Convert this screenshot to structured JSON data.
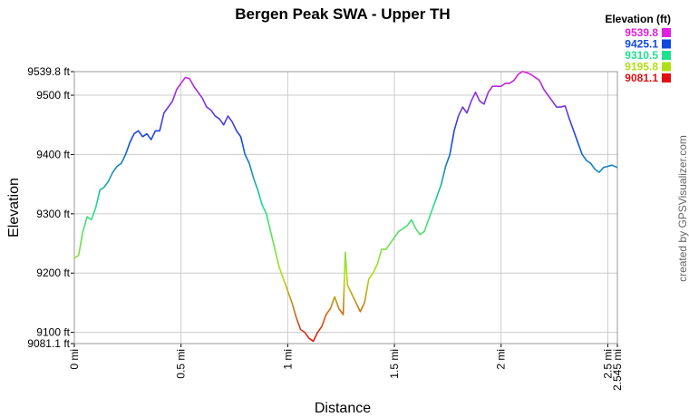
{
  "chart_data": {
    "type": "line",
    "title": "Bergen Peak SWA - Upper TH",
    "x_label": "Distance",
    "y_label": "Elevation",
    "credit": "created by GPSVisualizer.com",
    "legend": {
      "title": "Elevation (ft)",
      "position": "top-right",
      "entries": [
        {
          "value": 9539.8,
          "color": "#e020e0"
        },
        {
          "value": 9425.1,
          "color": "#1048e0"
        },
        {
          "value": 9310.5,
          "color": "#20e090"
        },
        {
          "value": 9195.8,
          "color": "#b0e010"
        },
        {
          "value": 9081.1,
          "color": "#e01010"
        }
      ]
    },
    "grid": true,
    "xlim": [
      0,
      2.545
    ],
    "ylim": [
      9081.1,
      9539.8
    ],
    "xticks": [
      {
        "value": 0,
        "label": "0 mi"
      },
      {
        "value": 0.5,
        "label": "0.5 mi"
      },
      {
        "value": 1,
        "label": "1 mi"
      },
      {
        "value": 1.5,
        "label": "1.5 mi"
      },
      {
        "value": 2,
        "label": "2 mi"
      },
      {
        "value": 2.5,
        "label": "2.5 mi"
      },
      {
        "value": 2.545,
        "label": "2.545 mi"
      }
    ],
    "yticks": [
      {
        "value": 9081.1,
        "label": "9081.1 ft"
      },
      {
        "value": 9100,
        "label": "9100 ft"
      },
      {
        "value": 9200,
        "label": "9200 ft"
      },
      {
        "value": 9300,
        "label": "9300 ft"
      },
      {
        "value": 9400,
        "label": "9400 ft"
      },
      {
        "value": 9500,
        "label": "9500 ft"
      },
      {
        "value": 9539.8,
        "label": "9539.8 ft"
      }
    ],
    "x": [
      0,
      0.02,
      0.04,
      0.06,
      0.08,
      0.1,
      0.12,
      0.14,
      0.16,
      0.18,
      0.2,
      0.22,
      0.24,
      0.26,
      0.28,
      0.3,
      0.32,
      0.34,
      0.36,
      0.38,
      0.4,
      0.42,
      0.44,
      0.46,
      0.48,
      0.5,
      0.52,
      0.54,
      0.56,
      0.58,
      0.6,
      0.62,
      0.64,
      0.66,
      0.68,
      0.7,
      0.72,
      0.74,
      0.76,
      0.78,
      0.8,
      0.82,
      0.84,
      0.86,
      0.88,
      0.9,
      0.92,
      0.94,
      0.96,
      0.98,
      1,
      1.02,
      1.04,
      1.06,
      1.08,
      1.1,
      1.12,
      1.14,
      1.16,
      1.18,
      1.2,
      1.22,
      1.24,
      1.26,
      1.27,
      1.28,
      1.3,
      1.32,
      1.34,
      1.36,
      1.38,
      1.4,
      1.42,
      1.44,
      1.46,
      1.48,
      1.5,
      1.52,
      1.54,
      1.56,
      1.58,
      1.6,
      1.62,
      1.64,
      1.66,
      1.68,
      1.7,
      1.72,
      1.74,
      1.76,
      1.78,
      1.8,
      1.82,
      1.84,
      1.86,
      1.88,
      1.9,
      1.92,
      1.94,
      1.96,
      1.98,
      2,
      2.02,
      2.04,
      2.06,
      2.08,
      2.1,
      2.12,
      2.14,
      2.16,
      2.18,
      2.2,
      2.22,
      2.24,
      2.26,
      2.28,
      2.3,
      2.32,
      2.34,
      2.36,
      2.38,
      2.4,
      2.42,
      2.44,
      2.46,
      2.48,
      2.5,
      2.52,
      2.545
    ],
    "values": [
      9225,
      9230,
      9270,
      9295,
      9290,
      9310,
      9340,
      9345,
      9355,
      9370,
      9380,
      9385,
      9400,
      9420,
      9435,
      9440,
      9430,
      9435,
      9425,
      9440,
      9440,
      9470,
      9480,
      9490,
      9510,
      9520,
      9530,
      9528,
      9515,
      9505,
      9495,
      9480,
      9475,
      9465,
      9460,
      9450,
      9465,
      9455,
      9440,
      9430,
      9400,
      9385,
      9360,
      9340,
      9315,
      9300,
      9270,
      9240,
      9210,
      9190,
      9170,
      9150,
      9125,
      9105,
      9100,
      9090,
      9085,
      9100,
      9110,
      9130,
      9140,
      9160,
      9140,
      9130,
      9235,
      9180,
      9165,
      9150,
      9135,
      9150,
      9190,
      9200,
      9215,
      9240,
      9240,
      9250,
      9260,
      9270,
      9275,
      9280,
      9290,
      9275,
      9265,
      9270,
      9290,
      9310,
      9330,
      9350,
      9380,
      9400,
      9440,
      9465,
      9480,
      9470,
      9490,
      9505,
      9490,
      9485,
      9505,
      9515,
      9515,
      9515,
      9520,
      9520,
      9525,
      9535,
      9540,
      9538,
      9535,
      9530,
      9525,
      9510,
      9500,
      9490,
      9480,
      9480,
      9482,
      9460,
      9440,
      9420,
      9400,
      9390,
      9385,
      9375,
      9370,
      9378,
      9380,
      9382,
      9378
    ]
  }
}
